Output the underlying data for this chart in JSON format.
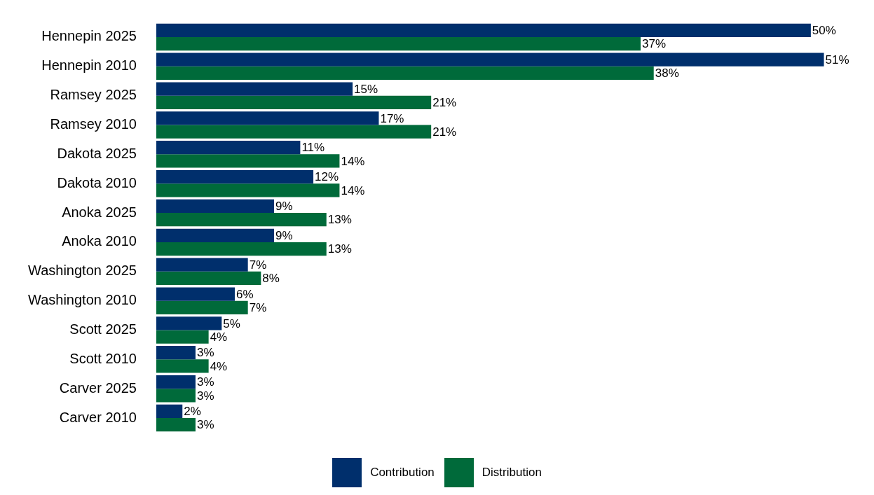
{
  "chart_data": {
    "type": "bar",
    "orientation": "horizontal",
    "legend": "bottom",
    "categories": [
      "Hennepin 2025",
      "Hennepin 2010",
      "Ramsey 2025",
      "Ramsey 2010",
      "Dakota 2025",
      "Dakota 2010",
      "Anoka 2025",
      "Anoka 2010",
      "Washington 2025",
      "Washington 2010",
      "Scott 2025",
      "Scott 2010",
      "Carver 2025",
      "Carver 2010"
    ],
    "series": [
      {
        "name": "Contribution",
        "color": "#002f6c",
        "values": [
          50,
          51,
          15,
          17,
          11,
          12,
          9,
          9,
          7,
          6,
          5,
          3,
          3,
          2
        ],
        "value_labels": [
          "50%",
          "51%",
          "15%",
          "17%",
          "11%",
          "12%",
          "9%",
          "9%",
          "7%",
          "6%",
          "5%",
          "3%",
          "3%",
          "2%"
        ]
      },
      {
        "name": "Distribution",
        "color": "#006a3a",
        "values": [
          37,
          38,
          21,
          21,
          14,
          14,
          13,
          13,
          8,
          7,
          4,
          4,
          3,
          3
        ],
        "value_labels": [
          "37%",
          "38%",
          "21%",
          "21%",
          "14%",
          "14%",
          "13%",
          "13%",
          "8%",
          "7%",
          "4%",
          "4%",
          "3%",
          "3%"
        ]
      }
    ]
  }
}
